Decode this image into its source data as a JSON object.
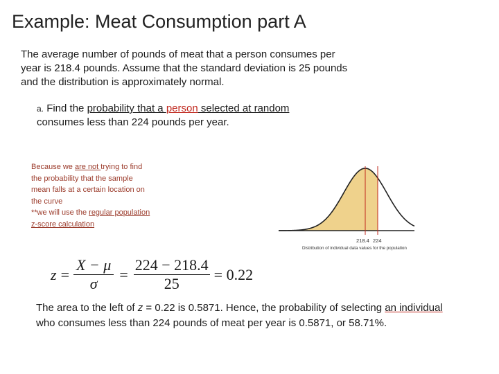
{
  "title": "Example: Meat Consumption part A",
  "intro": "The average number of pounds of meat that a person consumes per year is 218.4 pounds.  Assume that the standard deviation is 25 pounds and the distribution is approximately normal.",
  "part_a": {
    "marker": "a.",
    "t1": "Find the ",
    "u1": "probability that a ",
    "u2": "person",
    "u3": " selected at random",
    "t2": "consumes less than 224 pounds per year."
  },
  "note": {
    "t1": "Because we ",
    "u1": "are not ",
    "t2": "trying to find the probability that the sample mean falls at a certain location on the curve",
    "t3": "**we will use the ",
    "u2": "regular population z-score calculation"
  },
  "curve": {
    "tick_left": "218.4",
    "tick_right": "224",
    "caption": "Distribution of individual data values for the population",
    "fill_color": "#efd28c",
    "line_color": "#c0281e"
  },
  "formula": {
    "lhs": "z",
    "eq": "=",
    "num": "X − μ",
    "den": "σ",
    "num2": "224 − 218.4",
    "den2": "25",
    "result": "= 0.22"
  },
  "conclusion": {
    "t1": "The area to the left of ",
    "zvar": "z",
    "t2": " = 0.22 is 0.5871. Hence, the probability of selecting ",
    "u1": "an individual ",
    "t3": "who consumes less than 224 pounds of meat per year is 0.5871, or 58.71%."
  }
}
